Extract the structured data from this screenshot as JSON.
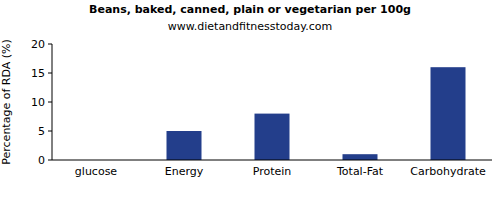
{
  "chart_data": {
    "type": "bar",
    "title": "Beans, baked, canned, plain or vegetarian per 100g",
    "subtitle": "www.dietandfitnesstoday.com",
    "y_label": "Percentage of RDA (%)",
    "categories": [
      "glucose",
      "Energy",
      "Protein",
      "Total-Fat",
      "Carbohydrate"
    ],
    "values": [
      0,
      5,
      8,
      1,
      16
    ],
    "color": "#233e8b",
    "ylim": [
      0,
      20
    ],
    "yticks": [
      0,
      5,
      10,
      15,
      20
    ],
    "grid": false
  }
}
